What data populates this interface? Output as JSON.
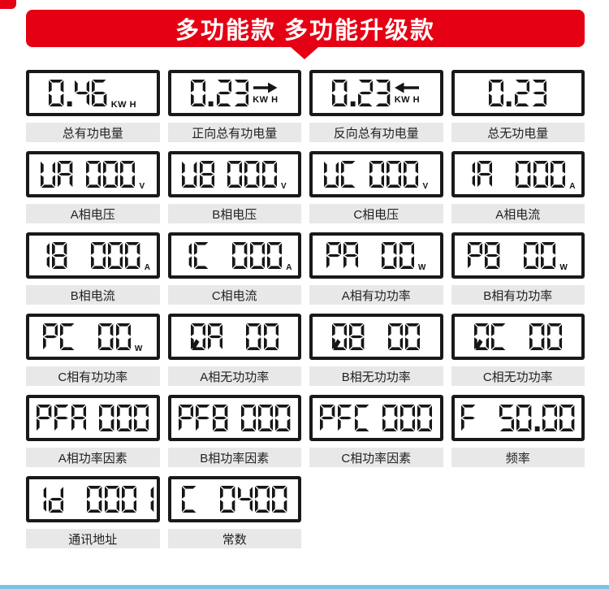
{
  "banner": {
    "title": "多功能款 多功能升级款"
  },
  "colors": {
    "accent_red": "#e50113",
    "lcd_border": "#191919",
    "segment": "#161616",
    "label_bg": "#e8e8e8",
    "label_text": "#222222",
    "bottom_bar_blue": "#79c3e8"
  },
  "cells": [
    {
      "display": "0.46",
      "unit": "KW H",
      "arrow": "",
      "label": "总有功电量"
    },
    {
      "display": "0.23",
      "unit": "KW H",
      "arrow": "right",
      "label": "正向总有功电量"
    },
    {
      "display": "0.23",
      "unit": "KW H",
      "arrow": "left",
      "label": "反向总有功电量"
    },
    {
      "display": "0.23",
      "unit": "",
      "arrow": "",
      "label": "总无功电量"
    },
    {
      "display": "UA 000",
      "unit": "V",
      "arrow": "",
      "label": "A相电压"
    },
    {
      "display": "UB 000",
      "unit": "V",
      "arrow": "",
      "label": "B相电压"
    },
    {
      "display": "UC 000",
      "unit": "V",
      "arrow": "",
      "label": "C相电压"
    },
    {
      "display": "IA  000",
      "unit": "A",
      "arrow": "",
      "label": "A相电流"
    },
    {
      "display": "IB  000",
      "unit": "A",
      "arrow": "",
      "label": "B相电流"
    },
    {
      "display": "IC  000",
      "unit": "A",
      "arrow": "",
      "label": "C相电流"
    },
    {
      "display": "PA  00",
      "unit": "W",
      "arrow": "",
      "label": "A相有功功率"
    },
    {
      "display": "PB  00",
      "unit": "W",
      "arrow": "",
      "label": "B相有功功率"
    },
    {
      "display": "PC  00",
      "unit": "W",
      "arrow": "",
      "label": "C相有功功率"
    },
    {
      "display": "QA  00",
      "unit": "",
      "arrow": "",
      "label": "A相无功功率"
    },
    {
      "display": "QB  00",
      "unit": "",
      "arrow": "",
      "label": "B相无功功率"
    },
    {
      "display": "QC  00",
      "unit": "",
      "arrow": "",
      "label": "C相无功功率"
    },
    {
      "display": "PFA 000",
      "unit": "",
      "arrow": "",
      "label": "A相功率因素"
    },
    {
      "display": "PFB 000",
      "unit": "",
      "arrow": "",
      "label": "B相功率因素"
    },
    {
      "display": "PFC 000",
      "unit": "",
      "arrow": "",
      "label": "C相功率因素"
    },
    {
      "display": "F  50.00",
      "unit": "",
      "arrow": "",
      "label": "频率"
    },
    {
      "display": "Id  0001",
      "unit": "",
      "arrow": "",
      "label": "通讯地址"
    },
    {
      "display": "C  0400",
      "unit": "",
      "arrow": "",
      "label": "常数"
    }
  ]
}
